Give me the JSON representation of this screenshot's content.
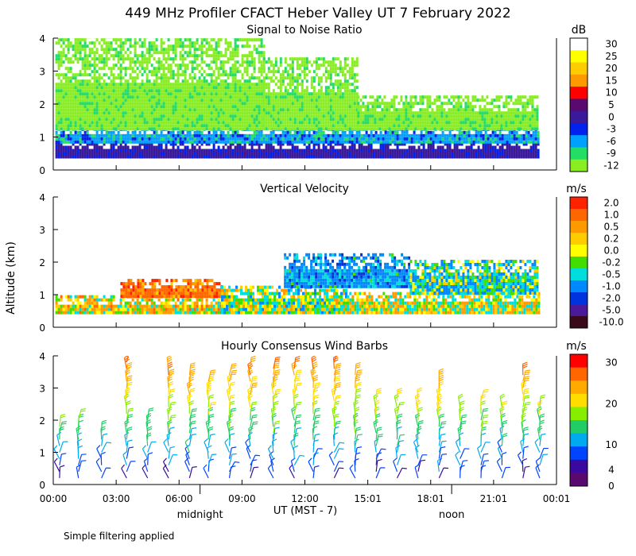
{
  "title": "449 MHz Profiler CFACT Heber Valley UT  7 February 2022",
  "ylabel": "Altitude (km)",
  "footnote": "Simple filtering applied",
  "x_axis": {
    "ticks": [
      "00:00",
      "03:00",
      "06:00",
      "09:00",
      "12:00",
      "15:01",
      "18:01",
      "21:01",
      "00:01"
    ],
    "tick_hours": [
      0,
      3,
      6,
      9,
      12,
      15,
      18,
      21,
      24
    ],
    "label": "UT  (MST - 7)",
    "midnight_label": "midnight",
    "midnight_hour": 7,
    "noon_label": "noon",
    "noon_hour": 19
  },
  "chart_data": [
    {
      "type": "heatmap",
      "title": "Signal to Noise Ratio",
      "xlabel": "UT  (MST - 7)",
      "ylabel": "Altitude (km)",
      "xlim": [
        0,
        24
      ],
      "ylim": [
        0,
        4
      ],
      "yticks": [
        0,
        1,
        2,
        3,
        4
      ],
      "colorbar": {
        "unit": "dB",
        "labels": [
          "30",
          "25",
          "20",
          "15",
          "10",
          "5",
          "0",
          "-3",
          "-6",
          "-9",
          "-12"
        ],
        "colors": [
          "#ffffff",
          "#ffff00",
          "#ffcc00",
          "#ff9900",
          "#ff0000",
          "#5a0a6e",
          "#3a1a9a",
          "#0022ee",
          "#00a0ff",
          "#22dd66",
          "#88ee22"
        ]
      },
      "regions": [
        {
          "t0": 0.1,
          "t1": 23.1,
          "alt0": 0.35,
          "alt1": 0.8,
          "value": 0
        },
        {
          "t0": 0.1,
          "t1": 23.1,
          "alt0": 0.8,
          "alt1": 1.2,
          "value": -6
        },
        {
          "t0": 0.1,
          "t1": 10.0,
          "alt0": 1.2,
          "alt1": 4.0,
          "value": -12
        },
        {
          "t0": 10.0,
          "t1": 14.5,
          "alt0": 1.2,
          "alt1": 3.4,
          "value": -12
        },
        {
          "t0": 14.5,
          "t1": 23.1,
          "alt0": 1.2,
          "alt1": 2.2,
          "value": -12
        }
      ]
    },
    {
      "type": "heatmap",
      "title": "Vertical Velocity",
      "xlabel": "UT  (MST - 7)",
      "ylabel": "Altitude (km)",
      "xlim": [
        0,
        24
      ],
      "ylim": [
        0,
        4
      ],
      "yticks": [
        0,
        1,
        2,
        3,
        4
      ],
      "colorbar": {
        "unit": "m/s",
        "labels": [
          "2.0",
          "1.0",
          "0.5",
          "0.2",
          "0.0",
          "-0.2",
          "-0.5",
          "-1.0",
          "-2.0",
          "-5.0",
          "-10.0"
        ],
        "colors": [
          "#ff2200",
          "#ff6600",
          "#ff9900",
          "#ffcc00",
          "#ffff00",
          "#44dd00",
          "#00dddd",
          "#0088ff",
          "#0033dd",
          "#4a1a9a",
          "#3a0a1a"
        ]
      },
      "regions": [
        {
          "t0": 0.1,
          "t1": 8.0,
          "alt0": 0.4,
          "alt1": 0.9,
          "value": 0.2
        },
        {
          "t0": 3.2,
          "t1": 8.0,
          "alt0": 0.9,
          "alt1": 1.4,
          "value": 1.0
        },
        {
          "t0": 8.0,
          "t1": 14.0,
          "alt0": 0.4,
          "alt1": 1.2,
          "value": -0.2
        },
        {
          "t0": 14.0,
          "t1": 23.1,
          "alt0": 0.4,
          "alt1": 1.0,
          "value": 0.0
        },
        {
          "t0": 11.0,
          "t1": 17.0,
          "alt0": 1.2,
          "alt1": 2.2,
          "value": -1.0
        },
        {
          "t0": 17.0,
          "t1": 23.1,
          "alt0": 1.0,
          "alt1": 2.0,
          "value": -0.5
        }
      ]
    },
    {
      "type": "wind_barbs",
      "title": "Hourly Consensus Wind Barbs",
      "xlabel": "UT  (MST - 7)",
      "ylabel": "Altitude (km)",
      "xlim": [
        0,
        24
      ],
      "ylim": [
        0,
        4
      ],
      "yticks": [
        0,
        1,
        2,
        3,
        4
      ],
      "colorbar": {
        "unit": "m/s",
        "labels": [
          "30",
          "20",
          "10",
          "4",
          "0"
        ],
        "tick_values": [
          30,
          20,
          10,
          4,
          0
        ],
        "colors": [
          "#ff0000",
          "#ff6600",
          "#ffaa00",
          "#ffdd00",
          "#88ee00",
          "#22cc66",
          "#00aaee",
          "#0044ff",
          "#3a0aa0",
          "#5a0a6e"
        ]
      },
      "hours": [
        0.3,
        1.2,
        2.3,
        3.5,
        4.5,
        5.5,
        6.5,
        7.4,
        8.4,
        9.4,
        10.5,
        11.5,
        12.4,
        13.4,
        14.4,
        15.4,
        16.4,
        17.4,
        18.4,
        19.4,
        20.4,
        21.4,
        22.4,
        23.2
      ],
      "max_alt_km": [
        1.8,
        2.0,
        1.6,
        3.9,
        2.0,
        3.8,
        3.6,
        3.4,
        3.6,
        3.8,
        3.7,
        3.7,
        3.7,
        4.0,
        3.5,
        2.7,
        2.6,
        2.7,
        3.4,
        2.5,
        2.7,
        2.4,
        3.6,
        2.4
      ]
    }
  ]
}
